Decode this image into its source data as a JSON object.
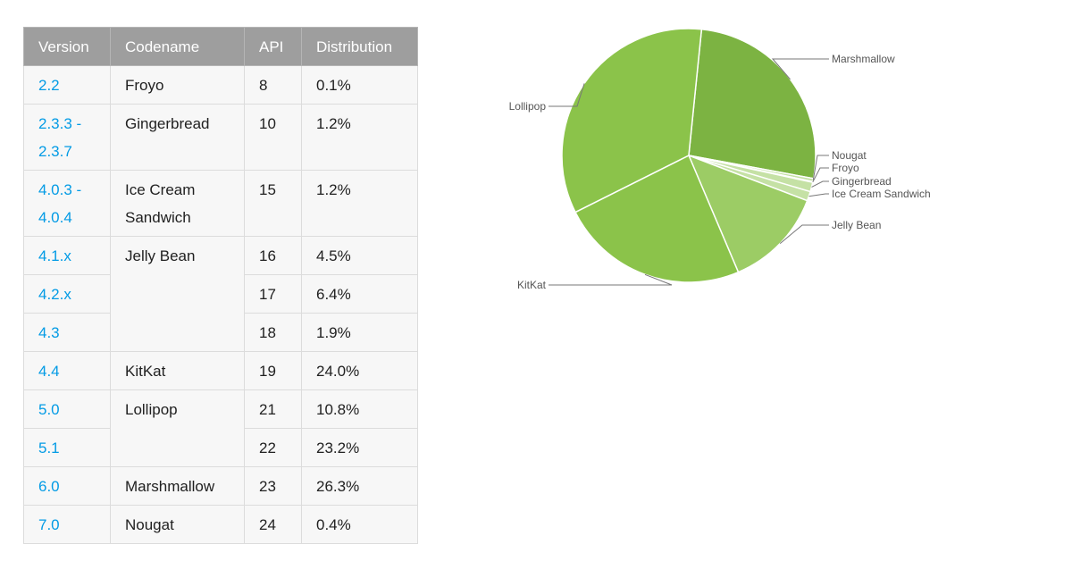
{
  "table": {
    "headers": [
      "Version",
      "Codename",
      "API",
      "Distribution"
    ],
    "rows": [
      {
        "version": "2.2",
        "codename": "Froyo",
        "api": "8",
        "distribution": "0.1%"
      },
      {
        "version": "2.3.3 - 2.3.7",
        "codename": "Gingerbread",
        "api": "10",
        "distribution": "1.2%"
      },
      {
        "version": "4.0.3 - 4.0.4",
        "codename": "Ice Cream Sandwich",
        "api": "15",
        "distribution": "1.2%"
      },
      {
        "version": "4.1.x",
        "codename": "Jelly Bean",
        "api": "16",
        "distribution": "4.5%"
      },
      {
        "version": "4.2.x",
        "codename": "",
        "api": "17",
        "distribution": "6.4%"
      },
      {
        "version": "4.3",
        "codename": "",
        "api": "18",
        "distribution": "1.9%"
      },
      {
        "version": "4.4",
        "codename": "KitKat",
        "api": "19",
        "distribution": "24.0%"
      },
      {
        "version": "5.0",
        "codename": "Lollipop",
        "api": "21",
        "distribution": "10.8%"
      },
      {
        "version": "5.1",
        "codename": "",
        "api": "22",
        "distribution": "23.2%"
      },
      {
        "version": "6.0",
        "codename": "Marshmallow",
        "api": "23",
        "distribution": "26.3%"
      },
      {
        "version": "7.0",
        "codename": "Nougat",
        "api": "24",
        "distribution": "0.4%"
      }
    ]
  },
  "chart_data": {
    "type": "pie",
    "categories": [
      "Marshmallow",
      "Nougat",
      "Froyo",
      "Gingerbread",
      "Ice Cream Sandwich",
      "Jelly Bean",
      "KitKat",
      "Lollipop"
    ],
    "values": [
      26.3,
      0.4,
      0.1,
      1.2,
      1.2,
      12.8,
      24.0,
      34.0
    ],
    "colors": [
      "#7cb342",
      "#c5e1a5",
      "#c5e1a5",
      "#c5e1a5",
      "#c5e1a5",
      "#9ccc65",
      "#8bc34a",
      "#8bc34a"
    ],
    "legend": "leader-line labels outside the pie"
  }
}
